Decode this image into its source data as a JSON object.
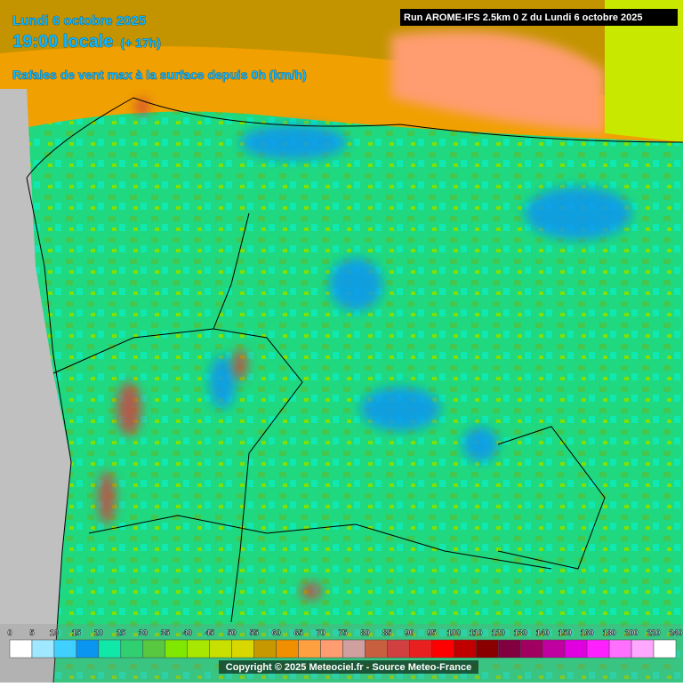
{
  "header": {
    "date": "Lundi 6 octobre 2025",
    "time": "19:00 locale",
    "offset": "(+ 17h)",
    "subtitle": "Rafales de vent max à la surface depuis 0h (km/h)",
    "run": "Run AROME-IFS 2.5km 0 Z du Lundi 6 octobre 2025"
  },
  "legend": {
    "labels": [
      "0",
      "5",
      "10",
      "15",
      "20",
      "25",
      "30",
      "35",
      "40",
      "45",
      "50",
      "55",
      "60",
      "65",
      "70",
      "75",
      "80",
      "85",
      "90",
      "95",
      "100",
      "110",
      "120",
      "130",
      "140",
      "150",
      "160",
      "180",
      "200",
      "220",
      "240"
    ],
    "colors": [
      "#ffffff",
      "#a0e8ff",
      "#40d0ff",
      "#0a96f0",
      "#10e8a8",
      "#30d070",
      "#58c840",
      "#80e800",
      "#a8e800",
      "#c8e000",
      "#d8d800",
      "#c89800",
      "#f09000",
      "#ffa040",
      "#ff9c70",
      "#d0a0a0",
      "#c86040",
      "#d04040",
      "#e82020",
      "#ff0000",
      "#c00000",
      "#880000",
      "#800040",
      "#a00060",
      "#c000a0",
      "#e000e0",
      "#ff20ff",
      "#ff70ff",
      "#ffa8ff",
      "#ffffff",
      "#e0e0e0",
      "#c0c0c0"
    ]
  },
  "footer": {
    "copyright": "Copyright © 2025 Meteociel.fr - Source Meteo-France"
  }
}
